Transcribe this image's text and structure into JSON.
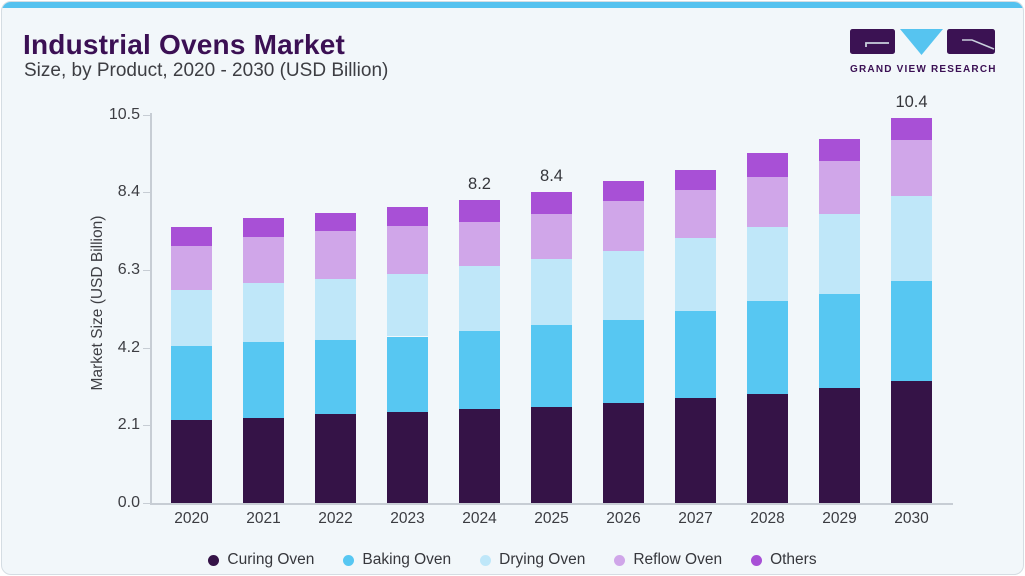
{
  "header": {
    "title": "Industrial Ovens Market",
    "subtitle": "Size, by Product, 2020 - 2030 (USD Billion)"
  },
  "logo": {
    "wordmark": "GRAND VIEW RESEARCH"
  },
  "colors": {
    "accent_blue": "#55C2EF",
    "brand_purple": "#3B1054",
    "card_background": "#F2F7FA",
    "axis_gray": "#C7CDD4"
  },
  "chart_data": {
    "type": "bar",
    "stacked": true,
    "title": "Industrial Ovens Market Size, by Product, 2020 - 2030 (USD Billion)",
    "ylabel": "Market Size (USD Billion)",
    "xlabel": "",
    "ylim": [
      0,
      10.5
    ],
    "ytick_labels": [
      "0.0",
      "2.1",
      "4.2",
      "6.3",
      "8.4",
      "10.5"
    ],
    "grid": false,
    "legend_position": "bottom",
    "categories": [
      "2020",
      "2021",
      "2022",
      "2023",
      "2024",
      "2025",
      "2026",
      "2027",
      "2028",
      "2029",
      "2030"
    ],
    "series": [
      {
        "name": "Curing Oven",
        "color": "#351347",
        "values": [
          2.25,
          2.3,
          2.4,
          2.45,
          2.55,
          2.6,
          2.7,
          2.85,
          2.95,
          3.1,
          3.3
        ]
      },
      {
        "name": "Baking Oven",
        "color": "#57c7f2",
        "values": [
          2.0,
          2.05,
          2.0,
          2.05,
          2.1,
          2.2,
          2.25,
          2.35,
          2.5,
          2.55,
          2.7
        ]
      },
      {
        "name": "Drying Oven",
        "color": "#bfe7f9",
        "values": [
          1.5,
          1.6,
          1.65,
          1.7,
          1.75,
          1.8,
          1.85,
          1.95,
          2.0,
          2.15,
          2.3
        ]
      },
      {
        "name": "Reflow Oven",
        "color": "#d0a6e9",
        "values": [
          1.2,
          1.25,
          1.3,
          1.3,
          1.2,
          1.2,
          1.35,
          1.3,
          1.35,
          1.45,
          1.5
        ]
      },
      {
        "name": "Others",
        "color": "#a850d6",
        "values": [
          0.5,
          0.5,
          0.5,
          0.5,
          0.6,
          0.6,
          0.55,
          0.55,
          0.65,
          0.6,
          0.6
        ]
      }
    ],
    "value_labels": [
      {
        "category": "2024",
        "text": "8.2"
      },
      {
        "category": "2025",
        "text": "8.4"
      },
      {
        "category": "2030",
        "text": "10.4"
      }
    ]
  }
}
